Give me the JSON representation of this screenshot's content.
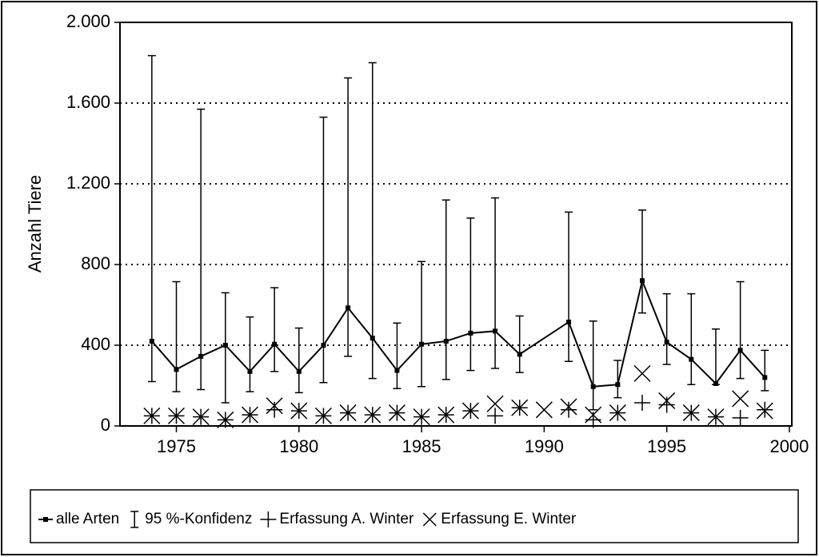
{
  "chart_data": {
    "type": "line",
    "y_label": "Anzahl Tiere",
    "xlim": [
      1972.7,
      2000.1
    ],
    "xticks": [
      1975,
      1980,
      1985,
      1990,
      1995,
      2000
    ],
    "ylim": [
      0,
      2000
    ],
    "yticks": [
      0,
      400,
      800,
      {
        "value": 1200,
        "label": "1.200"
      },
      {
        "value": 1600,
        "label": "1.600"
      },
      {
        "value": 2000,
        "label": "2.000"
      }
    ],
    "grid": true,
    "legend": "bottom",
    "interval_name": "95 %-Konfidenz",
    "series": [
      {
        "name": "alle Arten",
        "color": "#000",
        "marker": "square",
        "x": [
          1974,
          1975,
          1976,
          1977,
          1978,
          1979,
          1980,
          1981,
          1982,
          1983,
          1984,
          1985,
          1986,
          1987,
          1988,
          1989,
          1991,
          1992,
          1993,
          1994,
          1995,
          1996,
          1997,
          1998,
          1999
        ],
        "values": [
          420,
          280,
          345,
          400,
          270,
          405,
          270,
          400,
          585,
          435,
          275,
          405,
          420,
          460,
          470,
          355,
          515,
          195,
          205,
          720,
          415,
          330,
          210,
          375,
          240
        ],
        "lower": [
          220,
          170,
          180,
          115,
          170,
          270,
          165,
          215,
          345,
          235,
          185,
          195,
          230,
          275,
          285,
          265,
          320,
          80,
          140,
          560,
          305,
          205,
          205,
          235,
          175
        ],
        "upper": [
          1835,
          715,
          1570,
          660,
          540,
          685,
          485,
          1530,
          1725,
          1800,
          510,
          815,
          1120,
          1030,
          1130,
          545,
          1060,
          520,
          325,
          1070,
          655,
          655,
          480,
          715,
          375
        ]
      },
      {
        "name": "Erfassung A. Winter",
        "color": "#000",
        "marker": "plus",
        "x": [
          1974,
          1975,
          1976,
          1977,
          1978,
          1979,
          1980,
          1981,
          1982,
          1983,
          1984,
          1985,
          1986,
          1987,
          1988,
          1989,
          1991,
          1992,
          1993,
          1994,
          1995,
          1996,
          1997,
          1998,
          1999
        ],
        "values": [
          50,
          50,
          45,
          30,
          55,
          80,
          75,
          50,
          65,
          55,
          65,
          45,
          55,
          75,
          50,
          90,
          80,
          30,
          65,
          115,
          105,
          65,
          45,
          40,
          80
        ]
      },
      {
        "name": "Erfassung E. Winter",
        "color": "#000",
        "marker": "cross",
        "x": [
          1974,
          1975,
          1976,
          1977,
          1978,
          1979,
          1980,
          1981,
          1982,
          1983,
          1984,
          1985,
          1986,
          1987,
          1988,
          1989,
          1990,
          1991,
          1992,
          1993,
          1994,
          1995,
          1996,
          1997,
          1998,
          1999
        ],
        "values": [
          50,
          50,
          45,
          30,
          55,
          100,
          75,
          50,
          65,
          55,
          65,
          45,
          55,
          75,
          110,
          90,
          80,
          95,
          55,
          65,
          260,
          125,
          65,
          45,
          135,
          75
        ]
      }
    ]
  }
}
